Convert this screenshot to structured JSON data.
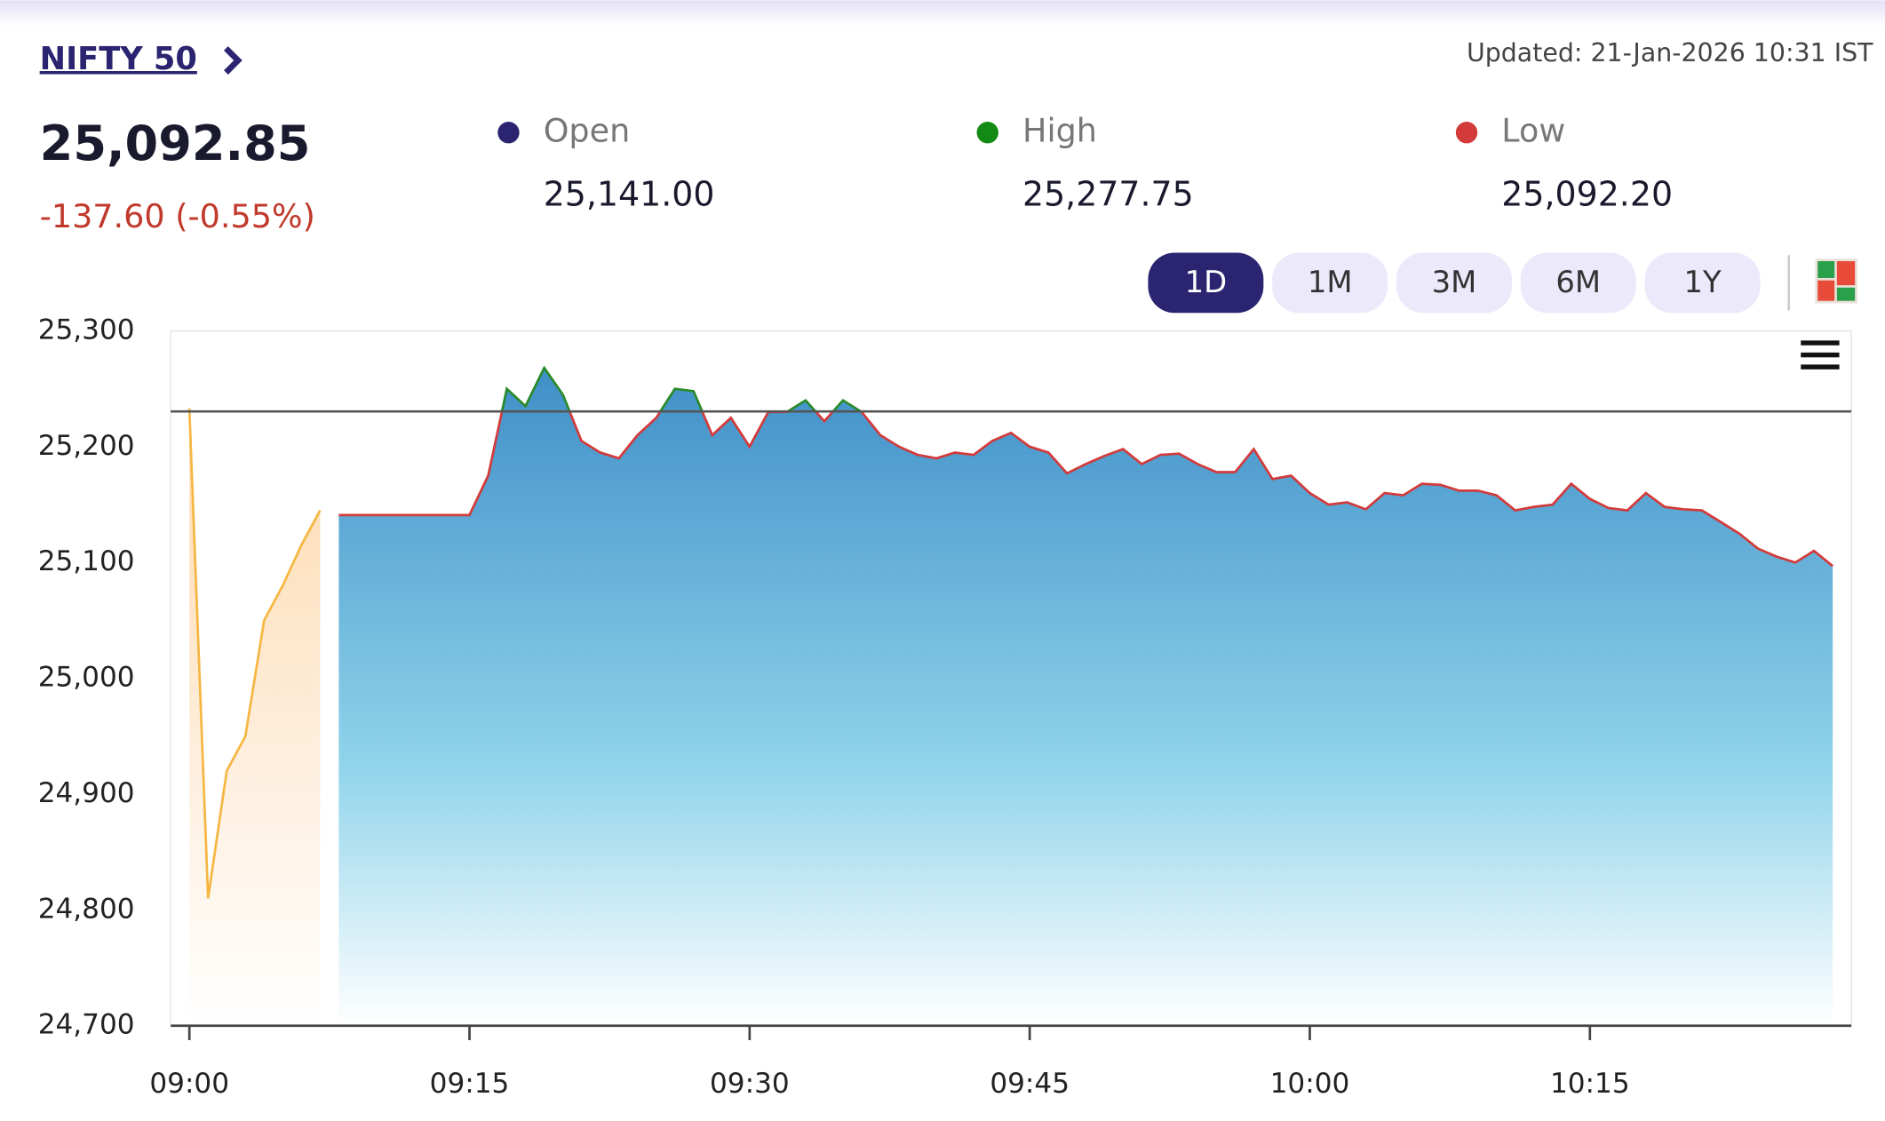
{
  "header": {
    "title": "NIFTY 50",
    "price": "25,092.85",
    "change": "-137.60 (-0.55%)",
    "updated": "Updated: 21-Jan-2026 10:31 IST",
    "stats": [
      {
        "label": "Open",
        "value": "25,141.00",
        "color": "#2b2470"
      },
      {
        "label": "High",
        "value": "25,277.75",
        "color": "#138a13"
      },
      {
        "label": "Low",
        "value": "25,092.20",
        "color": "#d33a3a"
      }
    ],
    "ranges": [
      "1D",
      "1M",
      "3M",
      "6M",
      "1Y"
    ],
    "active_range": "1D"
  },
  "chart_data": {
    "type": "area",
    "xlim": [
      "08:59",
      "10:29"
    ],
    "xticks": [
      "09:00",
      "09:15",
      "09:30",
      "09:45",
      "10:00",
      "10:15"
    ],
    "ylim": [
      24700,
      25300
    ],
    "yticks": [
      {
        "value": 24700,
        "label": "24,700"
      },
      {
        "value": 24800,
        "label": "24,800"
      },
      {
        "value": 24900,
        "label": "24,900"
      },
      {
        "value": 25000,
        "label": "25,000"
      },
      {
        "value": 25100,
        "label": "25,100"
      },
      {
        "value": 25200,
        "label": "25,200"
      },
      {
        "value": 25300,
        "label": "25,300"
      }
    ],
    "baseline": 25230.45,
    "series": [
      {
        "color": "#f5b642",
        "fill": "#fde3c4",
        "x": [
          "09:00",
          "09:01",
          "09:02",
          "09:03",
          "09:04",
          "09:05",
          "09:06",
          "09:07"
        ],
        "values": [
          25233,
          24810,
          24920,
          24950,
          25050,
          25080,
          25115,
          25145
        ]
      },
      {
        "color": "#d33a3a",
        "up_color": "#2a8a2a",
        "fill": "#3f8fc8",
        "x": [
          "09:08",
          "09:09",
          "09:10",
          "09:11",
          "09:12",
          "09:13",
          "09:14",
          "09:15",
          "09:16",
          "09:17",
          "09:18",
          "09:19",
          "09:20",
          "09:21",
          "09:22",
          "09:23",
          "09:24",
          "09:25",
          "09:26",
          "09:27",
          "09:28",
          "09:29",
          "09:30",
          "09:31",
          "09:32",
          "09:33",
          "09:34",
          "09:35",
          "09:36",
          "09:37",
          "09:38",
          "09:39",
          "09:40",
          "09:41",
          "09:42",
          "09:43",
          "09:44",
          "09:45",
          "09:46",
          "09:47",
          "09:48",
          "09:49",
          "09:50",
          "09:51",
          "09:52",
          "09:53",
          "09:54",
          "09:55",
          "09:56",
          "09:57",
          "09:58",
          "09:59",
          "10:00",
          "10:01",
          "10:02",
          "10:03",
          "10:04",
          "10:05",
          "10:06",
          "10:07",
          "10:08",
          "10:09",
          "10:10",
          "10:11",
          "10:12",
          "10:13",
          "10:14",
          "10:15",
          "10:16",
          "10:17",
          "10:18",
          "10:19",
          "10:20",
          "10:21",
          "10:22",
          "10:23",
          "10:24",
          "10:25",
          "10:26",
          "10:27",
          "10:28"
        ],
        "values": [
          25141,
          25141,
          25141,
          25141,
          25141,
          25141,
          25141,
          25141,
          25175,
          25250,
          25235,
          25268,
          25245,
          25205,
          25195,
          25190,
          25210,
          25225,
          25250,
          25248,
          25210,
          25225,
          25200,
          25230,
          25230,
          25240,
          25222,
          25240,
          25230,
          25210,
          25200,
          25193,
          25190,
          25195,
          25193,
          25205,
          25212,
          25200,
          25195,
          25177,
          25185,
          25192,
          25198,
          25185,
          25193,
          25194,
          25185,
          25178,
          25178,
          25198,
          25172,
          25175,
          25160,
          25150,
          25152,
          25146,
          25160,
          25158,
          25168,
          25167,
          25162,
          25162,
          25158,
          25145,
          25148,
          25150,
          25168,
          25155,
          25147,
          25145,
          25160,
          25148,
          25146,
          25145,
          25135,
          25125,
          25112,
          25105,
          25100,
          25110,
          25097
        ]
      }
    ]
  }
}
